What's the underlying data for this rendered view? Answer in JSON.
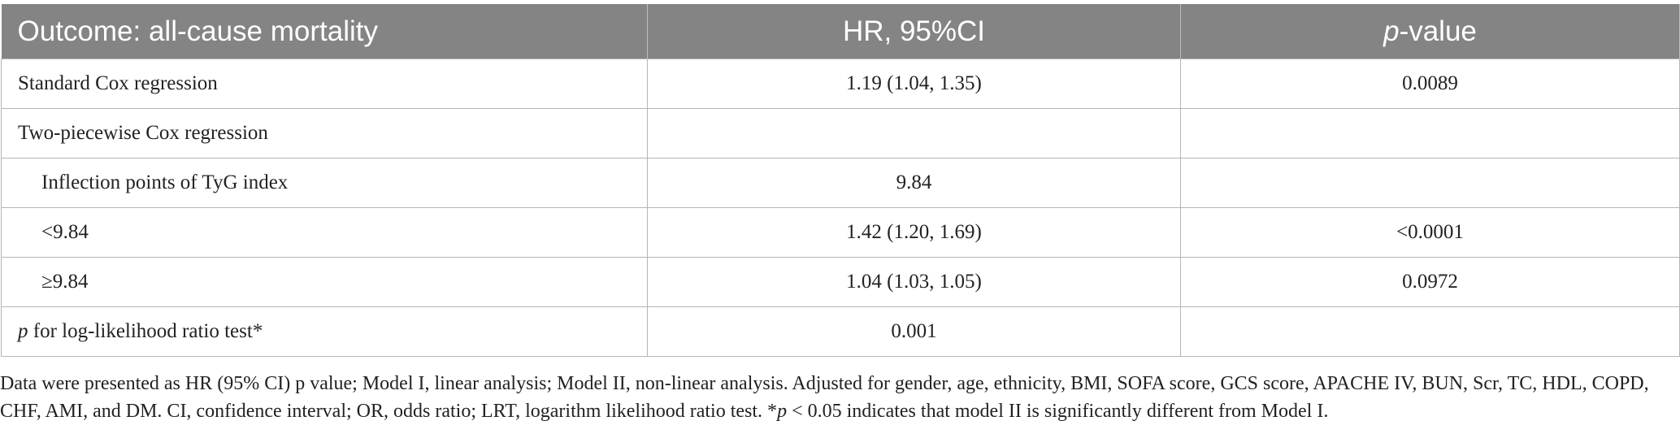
{
  "table": {
    "header": [
      "Outcome: all-cause mortality",
      "HR, 95%CI",
      [
        "p",
        "-value"
      ]
    ],
    "rows": [
      [
        "Standard Cox regression",
        "1.19 (1.04, 1.35)",
        "0.0089"
      ],
      [
        "Two-piecewise Cox regression"
      ],
      [
        "Inflection points of TyG index",
        "9.84"
      ],
      [
        "<9.84",
        "1.42 (1.20, 1.69)",
        "<0.0001"
      ],
      [
        "≥9.84",
        "1.04 (1.03, 1.05)",
        "0.0972"
      ],
      [
        [
          "p",
          " for log-likelihood ratio test*"
        ],
        "0.001"
      ]
    ]
  },
  "footnote": [
    "Data were presented as HR (95% CI) p value; Model I, linear analysis; Model II, non-linear analysis. Adjusted for gender, age, ethnicity, BMI, SOFA score, GCS score, APACHE IV, BUN, Scr, TC, HDL, COPD, CHF, AMI, and DM. CI, confidence interval; OR, odds ratio; LRT, logarithm likelihood ratio test. *",
    "p",
    " < 0.05 indicates that model II is significantly different from Model I."
  ]
}
